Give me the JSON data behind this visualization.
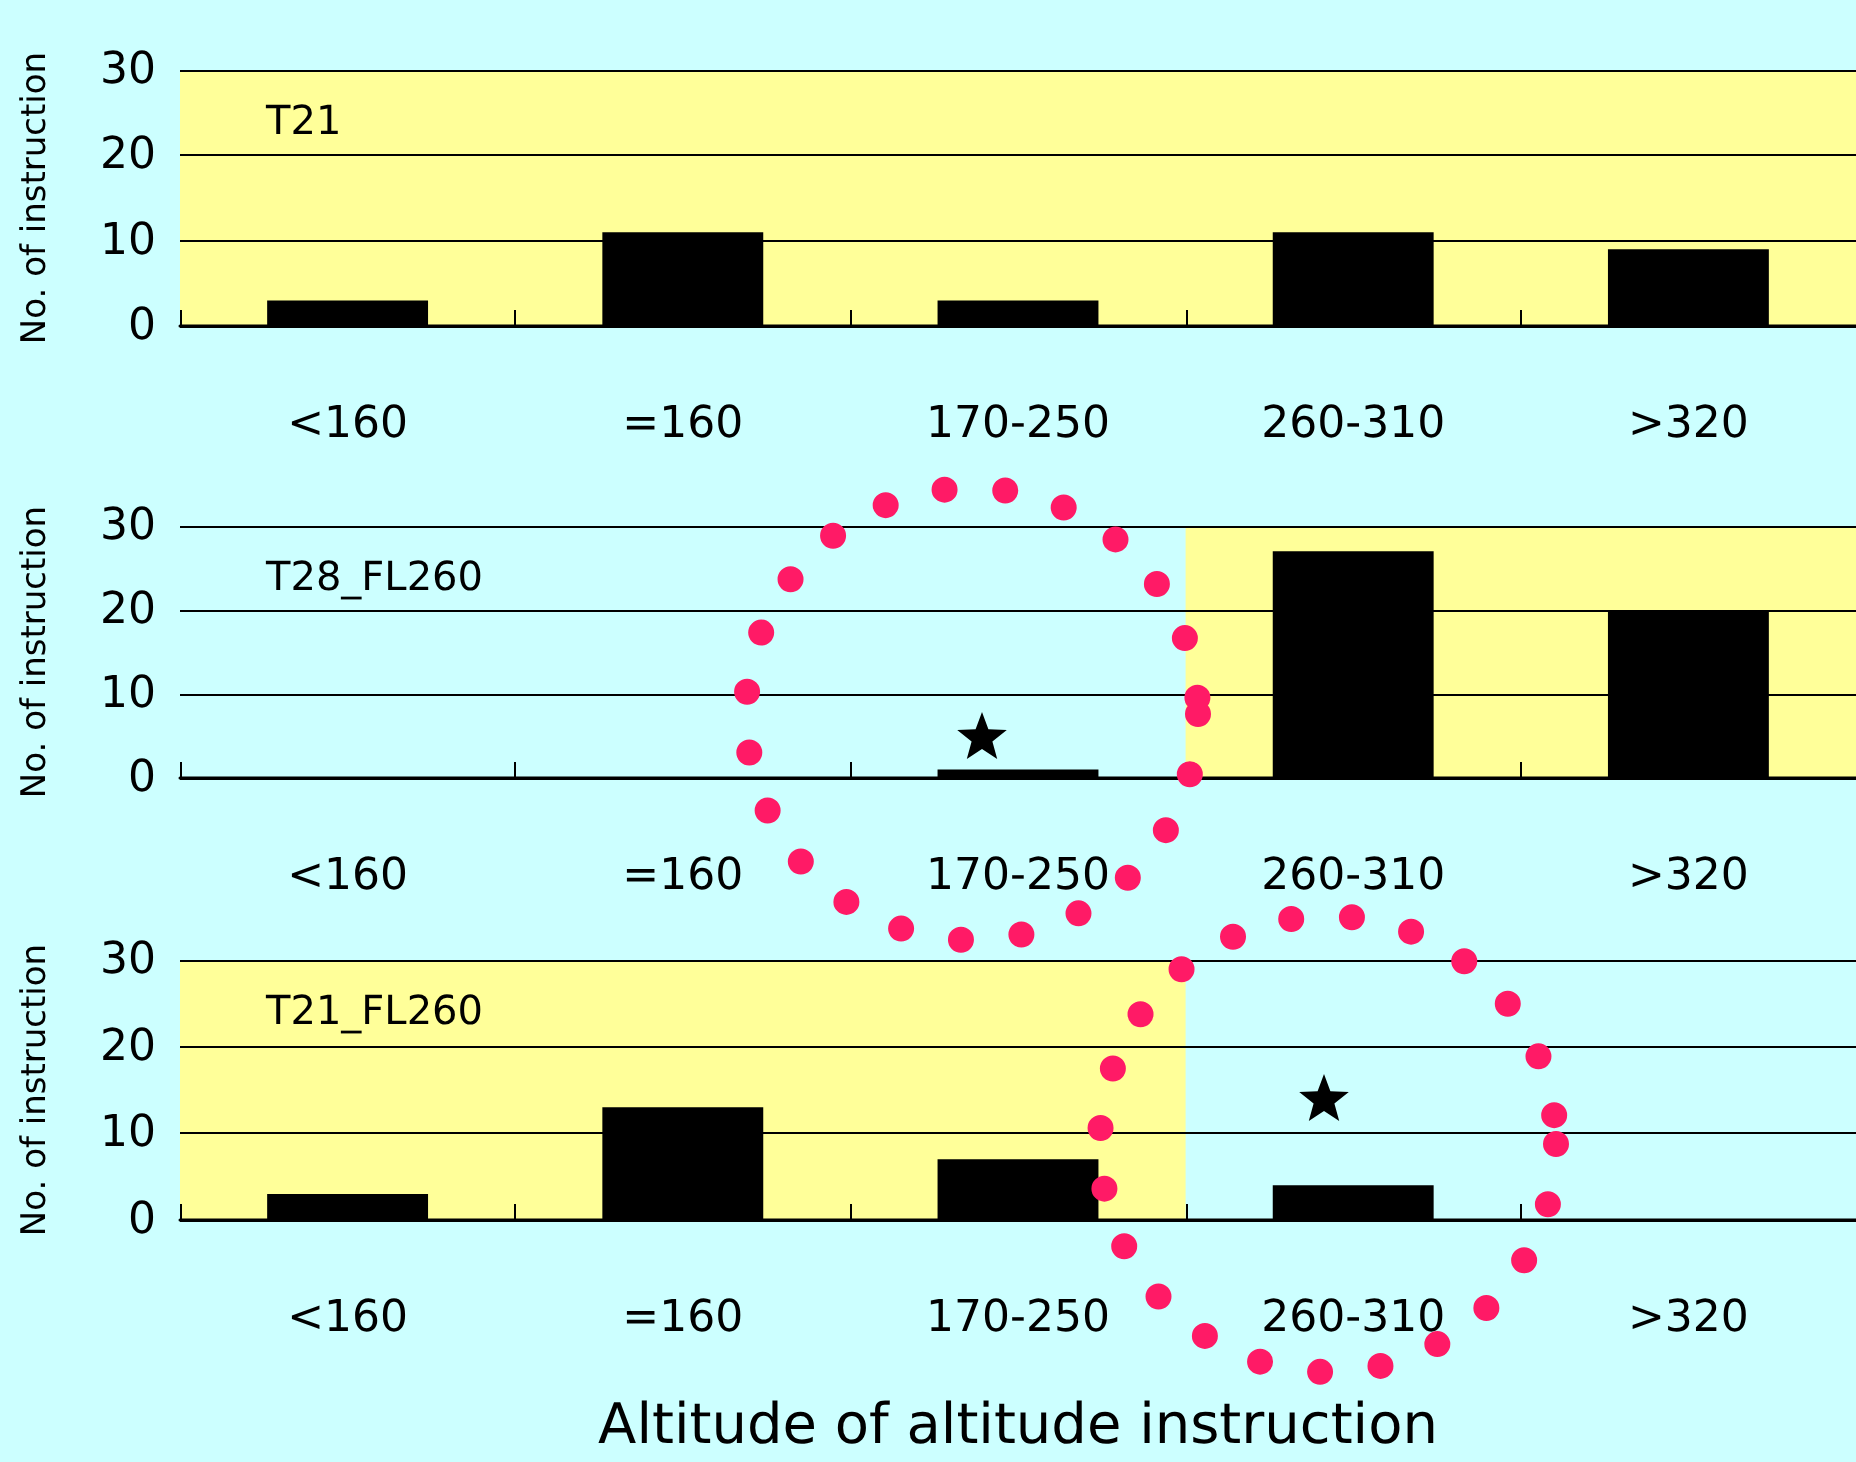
{
  "chart_data": [
    {
      "type": "bar",
      "title": "T21",
      "ylabel": "No. of instruction",
      "categories": [
        "<160",
        "=160",
        "170-250",
        "260-310",
        ">320"
      ],
      "series": [
        {
          "color": "#000000",
          "values": [
            3,
            11,
            3,
            11,
            9
          ]
        }
      ],
      "ylim": [
        0,
        30
      ],
      "yticks": [
        0,
        10,
        20,
        30
      ],
      "grid": "y",
      "bands": [
        {
          "axis": "x",
          "from": "<160",
          "to": ">320",
          "color": "#ffff99"
        }
      ]
    },
    {
      "type": "bar",
      "title": "T28_FL260",
      "ylabel": "No. of instruction",
      "categories": [
        "<160",
        "=160",
        "170-250",
        "260-310",
        ">320"
      ],
      "series": [
        {
          "color": "#000000",
          "values": [
            0,
            0,
            1,
            27,
            20
          ]
        }
      ],
      "ylim": [
        0,
        30
      ],
      "yticks": [
        0,
        10,
        20,
        30
      ],
      "grid": "y",
      "bands": [
        {
          "axis": "x",
          "from": "260-310",
          "to": ">320",
          "color": "#ffff99"
        }
      ]
    },
    {
      "type": "bar",
      "title": "T21_FL260",
      "ylabel": "No. of instruction",
      "xlabel": "Altitude of altitude instruction",
      "categories": [
        "<160",
        "=160",
        "170-250",
        "260-310",
        ">320"
      ],
      "series": [
        {
          "color": "#000000",
          "values": [
            3,
            13,
            7,
            4,
            0
          ]
        }
      ],
      "ylim": [
        0,
        30
      ],
      "yticks": [
        0,
        10,
        20,
        30
      ],
      "grid": "y",
      "bands": [
        {
          "axis": "x",
          "from": "<160",
          "to": "170-250",
          "color": "#ffff99"
        }
      ]
    }
  ]
}
